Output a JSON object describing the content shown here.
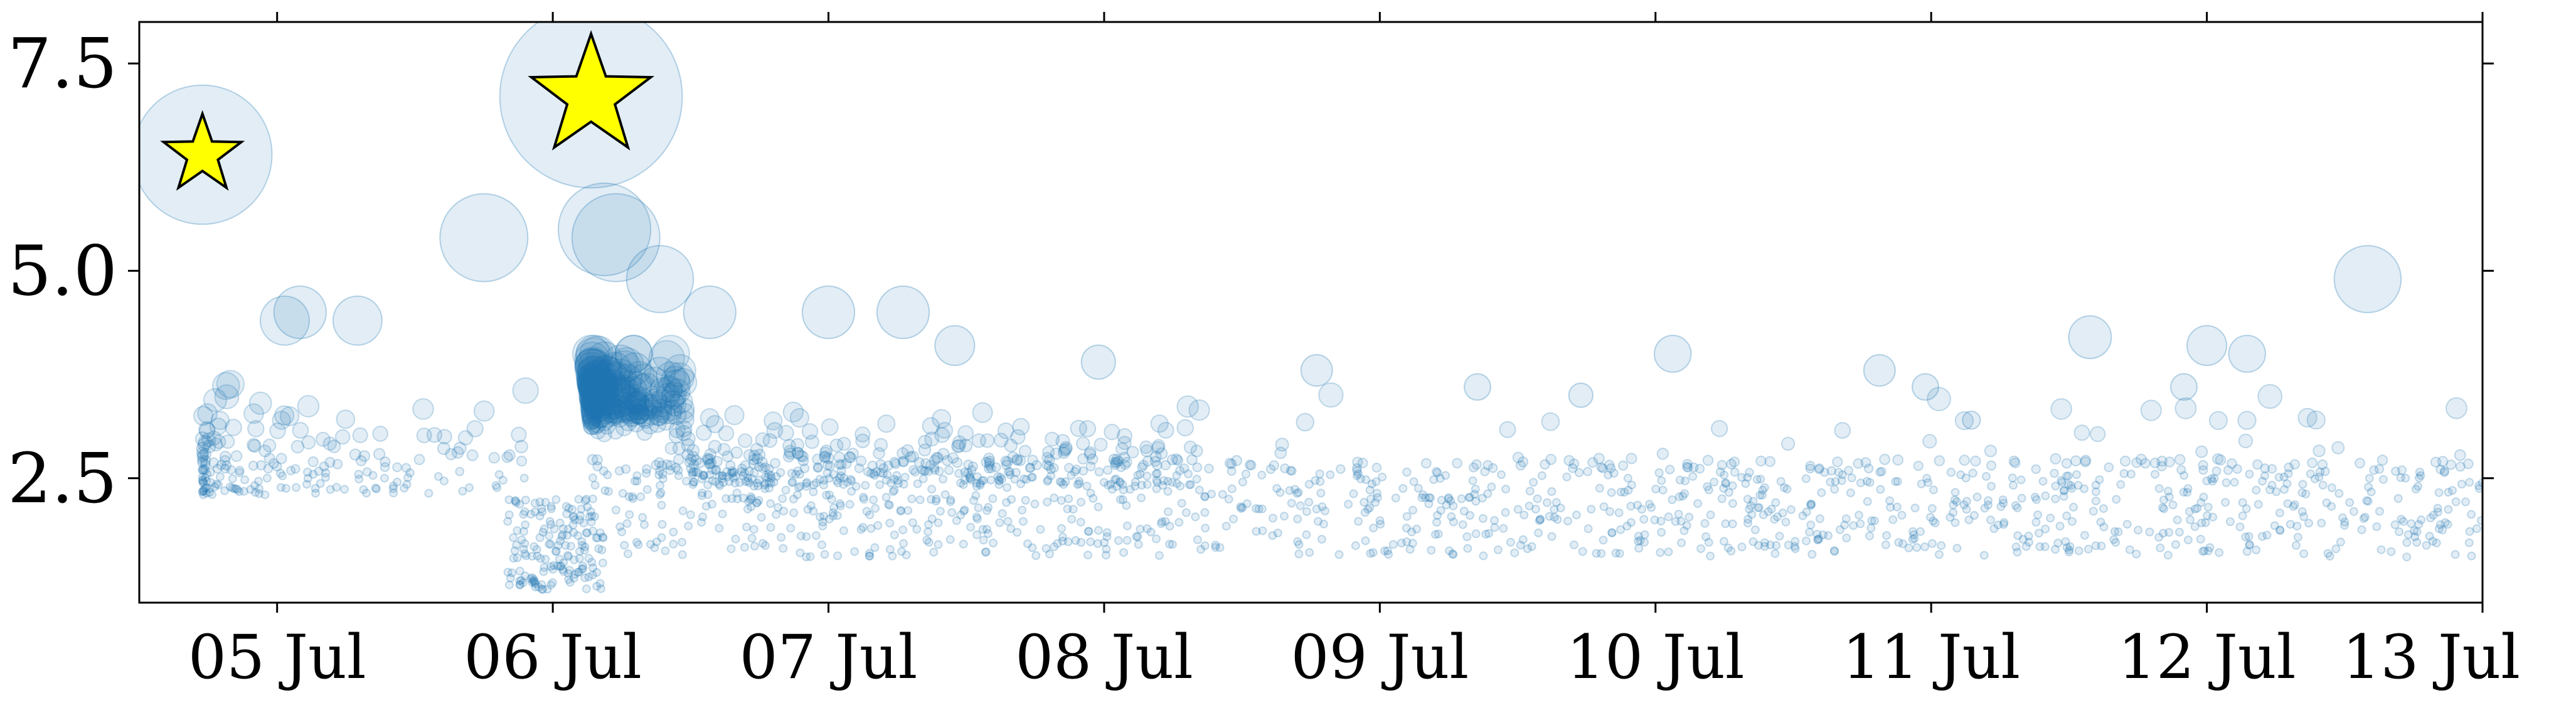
{
  "chart_data": {
    "type": "scatter",
    "title": "",
    "xlabel": "",
    "ylabel": "",
    "x_axis": {
      "type": "date",
      "range": [
        "2019-07-04T12:00",
        "2019-07-13T00:00"
      ],
      "ticks": [
        {
          "value": "2019-07-05",
          "label": "05 Jul"
        },
        {
          "value": "2019-07-06",
          "label": "06 Jul"
        },
        {
          "value": "2019-07-07",
          "label": "07 Jul"
        },
        {
          "value": "2019-07-08",
          "label": "08 Jul"
        },
        {
          "value": "2019-07-09",
          "label": "09 Jul"
        },
        {
          "value": "2019-07-10",
          "label": "10 Jul"
        },
        {
          "value": "2019-07-11",
          "label": "11 Jul"
        },
        {
          "value": "2019-07-12",
          "label": "12 Jul"
        },
        {
          "value": "2019-07-13",
          "label": "13 Jul"
        }
      ]
    },
    "y_axis": {
      "range": [
        1.0,
        8.0
      ],
      "ticks": [
        {
          "value": 2.5,
          "label": "2.5"
        },
        {
          "value": 5.0,
          "label": "5.0"
        },
        {
          "value": 7.5,
          "label": "7.5"
        }
      ]
    },
    "grid": false,
    "legend": "none",
    "colors": {
      "points": "#1f77b4",
      "star_fill": "#ffff00",
      "star_edge": "#000000"
    },
    "highlighted_events": [
      {
        "x": "2019-07-04T17:30",
        "y": 6.4,
        "marker": "star"
      },
      {
        "x": "2019-07-06T03:20",
        "y": 7.1,
        "marker": "star"
      }
    ],
    "notable_points": [
      {
        "x": "2019-07-04T17:30",
        "y": 6.4
      },
      {
        "x": "2019-07-06T03:20",
        "y": 7.1
      },
      {
        "x": "2019-07-05T18:00",
        "y": 5.4
      },
      {
        "x": "2019-07-06T04:30",
        "y": 5.5
      },
      {
        "x": "2019-07-06T05:30",
        "y": 5.4
      },
      {
        "x": "2019-07-06T09:20",
        "y": 4.9
      },
      {
        "x": "2019-07-06T13:40",
        "y": 4.5
      },
      {
        "x": "2019-07-07T00:00",
        "y": 4.5
      },
      {
        "x": "2019-07-07T06:30",
        "y": 4.5
      },
      {
        "x": "2019-07-05T00:40",
        "y": 4.4
      },
      {
        "x": "2019-07-05T02:00",
        "y": 4.5
      },
      {
        "x": "2019-07-05T07:00",
        "y": 4.4
      },
      {
        "x": "2019-07-07T11:00",
        "y": 4.1
      },
      {
        "x": "2019-07-10T01:30",
        "y": 4.0
      },
      {
        "x": "2019-07-10T19:30",
        "y": 3.8
      },
      {
        "x": "2019-07-10T23:30",
        "y": 3.6
      },
      {
        "x": "2019-07-11T13:50",
        "y": 4.2
      },
      {
        "x": "2019-07-11T22:00",
        "y": 3.6
      },
      {
        "x": "2019-07-11T03:30",
        "y": 3.2
      },
      {
        "x": "2019-07-12T00:00",
        "y": 4.1
      },
      {
        "x": "2019-07-12T03:30",
        "y": 4.0
      },
      {
        "x": "2019-07-12T14:00",
        "y": 4.9
      },
      {
        "x": "2019-07-07T23:30",
        "y": 3.9
      },
      {
        "x": "2019-07-08T18:30",
        "y": 3.8
      },
      {
        "x": "2019-07-09T08:30",
        "y": 3.6
      },
      {
        "x": "2019-07-09T17:30",
        "y": 3.5
      }
    ],
    "scatter_density": {
      "n_points": 2200,
      "seed": 7
    }
  }
}
